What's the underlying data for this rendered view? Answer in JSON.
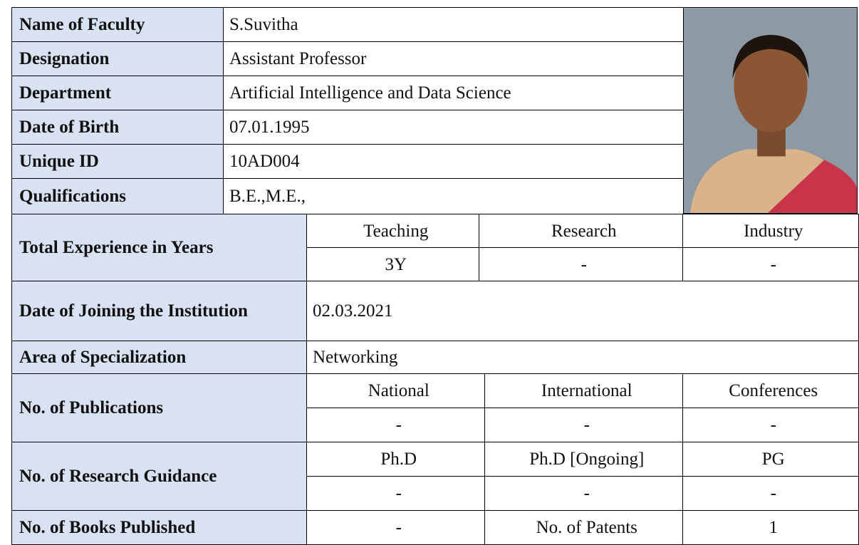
{
  "basic": [
    [
      "Name of Faculty",
      "S.Suvitha"
    ],
    [
      "Designation",
      "Assistant Professor"
    ],
    [
      "Department",
      "Artificial Intelligence and Data Science"
    ],
    [
      "Date of Birth",
      "07.01.1995"
    ],
    [
      "Unique ID",
      "10AD004"
    ],
    [
      "Qualifications",
      "B.E.,M.E.,"
    ]
  ],
  "experience": {
    "label": "Total Experience in Years",
    "headers": [
      "Teaching",
      "Research",
      "Industry"
    ],
    "values": [
      "3Y",
      "-",
      "-"
    ]
  },
  "joining": {
    "label": "Date of Joining the Institution",
    "value": "02.03.2021"
  },
  "specialization": {
    "label": "Area of Specialization",
    "value": "Networking"
  },
  "publications": {
    "label": "No. of  Publications",
    "headers": [
      "National",
      "International",
      "Conferences"
    ],
    "values": [
      "-",
      "-",
      "-"
    ]
  },
  "research_guidance": {
    "label": "No. of Research Guidance",
    "headers": [
      "Ph.D",
      "Ph.D [Ongoing]",
      "PG"
    ],
    "values": [
      "-",
      "-",
      "-"
    ]
  },
  "books": {
    "label": "No. of Books Published",
    "value": "-",
    "patents_label": "No. of Patents",
    "patents": "1"
  }
}
